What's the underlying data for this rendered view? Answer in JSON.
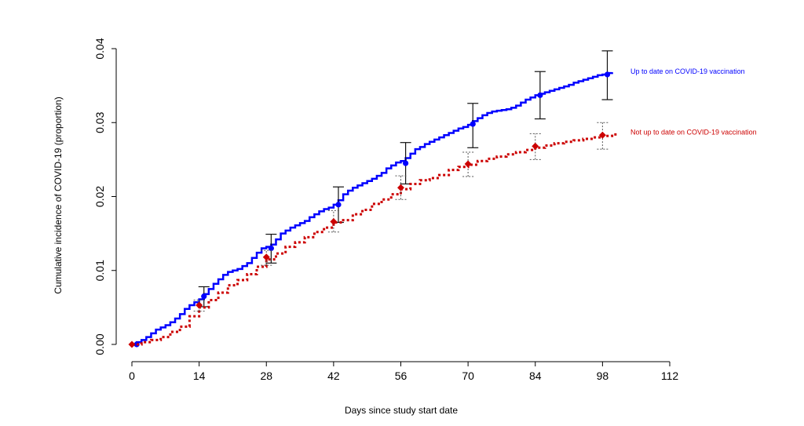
{
  "chart_data": {
    "type": "line",
    "title": "",
    "xlabel": "Days since study start date",
    "ylabel": "Cumulative incidence of COVID-19 (proportion)",
    "xlim": [
      0,
      112
    ],
    "ylim": [
      0,
      0.04
    ],
    "x_ticks": [
      0,
      14,
      28,
      42,
      56,
      70,
      84,
      98,
      112
    ],
    "y_ticks": [
      "0.00",
      "0.01",
      "0.02",
      "0.03",
      "0.04"
    ],
    "grid": false,
    "series": [
      {
        "name": "Up to date on COVID-19 vaccination",
        "color": "#0000ff",
        "line_style": "solid",
        "step_curve": [
          [
            0,
            0.0
          ],
          [
            1,
            0.0003
          ],
          [
            2,
            0.0006
          ],
          [
            3,
            0.001
          ],
          [
            4,
            0.0015
          ],
          [
            5,
            0.002
          ],
          [
            6,
            0.0023
          ],
          [
            7,
            0.0026
          ],
          [
            8,
            0.003
          ],
          [
            9,
            0.0035
          ],
          [
            10,
            0.0041
          ],
          [
            11,
            0.0048
          ],
          [
            12,
            0.0053
          ],
          [
            13,
            0.0057
          ],
          [
            14,
            0.0061
          ],
          [
            15,
            0.0068
          ],
          [
            16,
            0.0075
          ],
          [
            17,
            0.0082
          ],
          [
            18,
            0.0088
          ],
          [
            19,
            0.0094
          ],
          [
            20,
            0.0098
          ],
          [
            21,
            0.01
          ],
          [
            22,
            0.0102
          ],
          [
            23,
            0.0106
          ],
          [
            24,
            0.011
          ],
          [
            25,
            0.0117
          ],
          [
            26,
            0.0124
          ],
          [
            27,
            0.013
          ],
          [
            28,
            0.0132
          ],
          [
            29,
            0.0135
          ],
          [
            30,
            0.0142
          ],
          [
            31,
            0.015
          ],
          [
            32,
            0.0154
          ],
          [
            33,
            0.0158
          ],
          [
            34,
            0.0161
          ],
          [
            35,
            0.0164
          ],
          [
            36,
            0.0167
          ],
          [
            37,
            0.0172
          ],
          [
            38,
            0.0176
          ],
          [
            39,
            0.018
          ],
          [
            40,
            0.0183
          ],
          [
            41,
            0.0185
          ],
          [
            42,
            0.0189
          ],
          [
            43,
            0.0195
          ],
          [
            44,
            0.0203
          ],
          [
            45,
            0.0208
          ],
          [
            46,
            0.0212
          ],
          [
            47,
            0.0215
          ],
          [
            48,
            0.0218
          ],
          [
            49,
            0.0221
          ],
          [
            50,
            0.0224
          ],
          [
            51,
            0.0228
          ],
          [
            52,
            0.0232
          ],
          [
            53,
            0.0238
          ],
          [
            54,
            0.0242
          ],
          [
            55,
            0.0246
          ],
          [
            56,
            0.0248
          ],
          [
            57,
            0.0252
          ],
          [
            58,
            0.0258
          ],
          [
            59,
            0.0264
          ],
          [
            60,
            0.0267
          ],
          [
            61,
            0.0271
          ],
          [
            62,
            0.0274
          ],
          [
            63,
            0.0277
          ],
          [
            64,
            0.028
          ],
          [
            65,
            0.0283
          ],
          [
            66,
            0.0286
          ],
          [
            67,
            0.0289
          ],
          [
            68,
            0.0292
          ],
          [
            69,
            0.0294
          ],
          [
            70,
            0.0297
          ],
          [
            71,
            0.0302
          ],
          [
            72,
            0.0306
          ],
          [
            73,
            0.031
          ],
          [
            74,
            0.0313
          ],
          [
            75,
            0.0315
          ],
          [
            76,
            0.0316
          ],
          [
            77,
            0.0317
          ],
          [
            78,
            0.0318
          ],
          [
            79,
            0.032
          ],
          [
            80,
            0.0323
          ],
          [
            81,
            0.0327
          ],
          [
            82,
            0.0331
          ],
          [
            83,
            0.0334
          ],
          [
            84,
            0.0337
          ],
          [
            85,
            0.0339
          ],
          [
            86,
            0.0341
          ],
          [
            87,
            0.0343
          ],
          [
            88,
            0.0345
          ],
          [
            89,
            0.0347
          ],
          [
            90,
            0.0349
          ],
          [
            91,
            0.0351
          ],
          [
            92,
            0.0354
          ],
          [
            93,
            0.0356
          ],
          [
            94,
            0.0358
          ],
          [
            95,
            0.036
          ],
          [
            96,
            0.0362
          ],
          [
            97,
            0.0364
          ],
          [
            98,
            0.0365
          ],
          [
            99,
            0.0367
          ],
          [
            100,
            0.0368
          ]
        ],
        "points": [
          {
            "x": 1,
            "y": 0.0,
            "lower": 0.0,
            "upper": 0.0
          },
          {
            "x": 15,
            "y": 0.0065,
            "lower": 0.0051,
            "upper": 0.0078
          },
          {
            "x": 29,
            "y": 0.013,
            "lower": 0.011,
            "upper": 0.0149
          },
          {
            "x": 43,
            "y": 0.0189,
            "lower": 0.0165,
            "upper": 0.0213
          },
          {
            "x": 57,
            "y": 0.0245,
            "lower": 0.0217,
            "upper": 0.0273
          },
          {
            "x": 71,
            "y": 0.0298,
            "lower": 0.0266,
            "upper": 0.0326
          },
          {
            "x": 85,
            "y": 0.0337,
            "lower": 0.0305,
            "upper": 0.0369
          },
          {
            "x": 99,
            "y": 0.0365,
            "lower": 0.0331,
            "upper": 0.0397
          }
        ]
      },
      {
        "name": "Not up to date on COVID-19 vaccination",
        "color": "#cc0000",
        "line_style": "dotted",
        "step_curve": [
          [
            0,
            0.0
          ],
          [
            2,
            0.0003
          ],
          [
            4,
            0.0006
          ],
          [
            6,
            0.001
          ],
          [
            8,
            0.0017
          ],
          [
            10,
            0.0024
          ],
          [
            12,
            0.0038
          ],
          [
            14,
            0.005
          ],
          [
            16,
            0.006
          ],
          [
            18,
            0.007
          ],
          [
            20,
            0.008
          ],
          [
            22,
            0.0087
          ],
          [
            24,
            0.0095
          ],
          [
            26,
            0.0105
          ],
          [
            28,
            0.0115
          ],
          [
            30,
            0.0123
          ],
          [
            32,
            0.0132
          ],
          [
            34,
            0.0138
          ],
          [
            36,
            0.0145
          ],
          [
            38,
            0.0152
          ],
          [
            40,
            0.0158
          ],
          [
            42,
            0.0165
          ],
          [
            44,
            0.0168
          ],
          [
            46,
            0.0176
          ],
          [
            48,
            0.0182
          ],
          [
            50,
            0.019
          ],
          [
            52,
            0.0196
          ],
          [
            54,
            0.0203
          ],
          [
            56,
            0.021
          ],
          [
            58,
            0.0217
          ],
          [
            60,
            0.0222
          ],
          [
            62,
            0.0225
          ],
          [
            64,
            0.0229
          ],
          [
            66,
            0.0236
          ],
          [
            68,
            0.024
          ],
          [
            70,
            0.0243
          ],
          [
            72,
            0.0248
          ],
          [
            74,
            0.0251
          ],
          [
            76,
            0.0254
          ],
          [
            78,
            0.0257
          ],
          [
            80,
            0.026
          ],
          [
            82,
            0.0263
          ],
          [
            84,
            0.0266
          ],
          [
            86,
            0.0269
          ],
          [
            88,
            0.0272
          ],
          [
            90,
            0.0274
          ],
          [
            92,
            0.0276
          ],
          [
            94,
            0.0278
          ],
          [
            96,
            0.028
          ],
          [
            98,
            0.0282
          ],
          [
            100,
            0.0284
          ],
          [
            101,
            0.0286
          ]
        ],
        "points": [
          {
            "x": 0,
            "y": 0.0,
            "lower": 0.0,
            "upper": 0.0
          },
          {
            "x": 14,
            "y": 0.0053,
            "lower": 0.0045,
            "upper": 0.006
          },
          {
            "x": 28,
            "y": 0.0118,
            "lower": 0.0107,
            "upper": 0.0127
          },
          {
            "x": 42,
            "y": 0.0166,
            "lower": 0.0152,
            "upper": 0.0181
          },
          {
            "x": 56,
            "y": 0.0212,
            "lower": 0.0196,
            "upper": 0.0228
          },
          {
            "x": 70,
            "y": 0.0244,
            "lower": 0.0227,
            "upper": 0.026
          },
          {
            "x": 84,
            "y": 0.0268,
            "lower": 0.025,
            "upper": 0.0285
          },
          {
            "x": 98,
            "y": 0.0283,
            "lower": 0.0264,
            "upper": 0.03
          }
        ]
      }
    ]
  }
}
